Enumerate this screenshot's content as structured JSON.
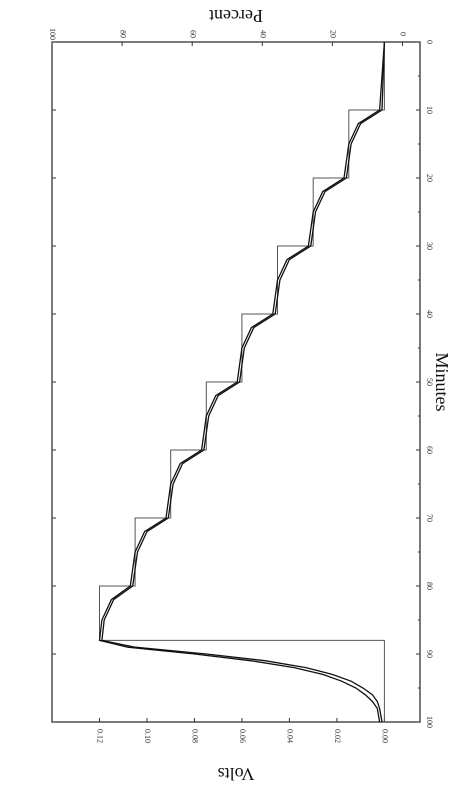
{
  "chart_data": {
    "type": "line",
    "rotated": "page printed sideways (rotated 90° clockwise)",
    "xlabel": "Minutes",
    "ylabel_left": "Volts",
    "ylabel_right": "Percent",
    "x_ticks": [
      "0",
      "10",
      "20",
      "30",
      "40",
      "50",
      "60",
      "70",
      "80",
      "90",
      "100"
    ],
    "xlim": [
      0,
      100
    ],
    "y_left_ticks": [
      "0.00",
      "0.02",
      "0.04",
      "0.06",
      "0.08",
      "0.10",
      "0.12"
    ],
    "ylim_left": [
      -0.015,
      0.14
    ],
    "y_right_ticks": [
      "0",
      "20",
      "40",
      "60",
      "80",
      "100"
    ],
    "ylim_right": [
      -5,
      100
    ],
    "grid": false,
    "series": [
      {
        "style": "step",
        "x": [
          0,
          10,
          10,
          20,
          20,
          30,
          30,
          40,
          40,
          50,
          50,
          60,
          60,
          70,
          70,
          80,
          80,
          88,
          88,
          100
        ],
        "y": [
          0.0,
          0.0,
          0.015,
          0.015,
          0.03,
          0.03,
          0.045,
          0.045,
          0.06,
          0.06,
          0.075,
          0.075,
          0.09,
          0.09,
          0.105,
          0.105,
          0.12,
          0.12,
          0.0,
          0.0
        ]
      },
      {
        "style": "smooth",
        "x": [
          0,
          10,
          12,
          15,
          20,
          22,
          25,
          30,
          32,
          35,
          40,
          42,
          45,
          50,
          52,
          55,
          60,
          62,
          65,
          70,
          72,
          75,
          80,
          82,
          85,
          88,
          89,
          90,
          91,
          92,
          93,
          94,
          95,
          96,
          97,
          98,
          100
        ],
        "y": [
          0.0,
          0.001,
          0.01,
          0.014,
          0.016,
          0.025,
          0.029,
          0.031,
          0.04,
          0.044,
          0.046,
          0.055,
          0.059,
          0.061,
          0.07,
          0.074,
          0.076,
          0.085,
          0.089,
          0.091,
          0.1,
          0.104,
          0.106,
          0.114,
          0.118,
          0.119,
          0.105,
          0.075,
          0.05,
          0.033,
          0.022,
          0.014,
          0.009,
          0.005,
          0.003,
          0.002,
          0.001
        ]
      },
      {
        "style": "smooth",
        "x": [
          0,
          10,
          12,
          15,
          20,
          22,
          25,
          30,
          32,
          35,
          40,
          42,
          45,
          50,
          52,
          55,
          60,
          62,
          65,
          70,
          72,
          75,
          80,
          82,
          85,
          88,
          89,
          90,
          91,
          92,
          93,
          94,
          95,
          96,
          97,
          98,
          100
        ],
        "y": [
          0.0,
          0.002,
          0.011,
          0.015,
          0.017,
          0.026,
          0.03,
          0.032,
          0.041,
          0.045,
          0.047,
          0.056,
          0.06,
          0.062,
          0.071,
          0.075,
          0.077,
          0.086,
          0.09,
          0.092,
          0.101,
          0.105,
          0.107,
          0.115,
          0.119,
          0.12,
          0.108,
          0.08,
          0.056,
          0.038,
          0.026,
          0.018,
          0.012,
          0.008,
          0.005,
          0.003,
          0.002
        ]
      }
    ]
  }
}
